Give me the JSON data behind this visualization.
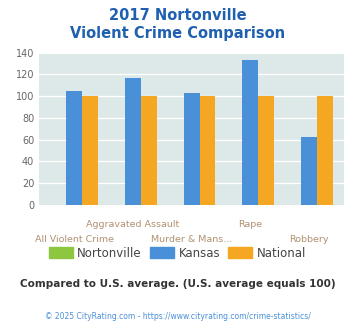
{
  "title_line1": "2017 Nortonville",
  "title_line2": "Violent Crime Comparison",
  "categories": [
    "All Violent Crime",
    "Aggravated Assault",
    "Murder & Mans...",
    "Rape",
    "Robbery"
  ],
  "nortonville": [
    0,
    0,
    0,
    0,
    0
  ],
  "kansas": [
    105,
    117,
    103,
    133,
    62
  ],
  "national": [
    100,
    100,
    100,
    100,
    100
  ],
  "colors": {
    "nortonville": "#8dc63f",
    "kansas": "#4a90d9",
    "national": "#f5a623"
  },
  "ylim": [
    0,
    140
  ],
  "yticks": [
    0,
    20,
    40,
    60,
    80,
    100,
    120,
    140
  ],
  "bg_color": "#dce9e8",
  "title_color": "#2060b0",
  "xlabel_color": "#b09070",
  "legend_label_color": "#444444",
  "note_text": "Compared to U.S. average. (U.S. average equals 100)",
  "note_color": "#333333",
  "footer_text": "© 2025 CityRating.com - https://www.cityrating.com/crime-statistics/",
  "footer_color": "#4a90d9",
  "top_labels": {
    "1": "Aggravated Assault",
    "3": "Rape"
  },
  "bot_labels": {
    "0": "All Violent Crime",
    "2": "Murder & Mans...",
    "4": "Robbery"
  }
}
